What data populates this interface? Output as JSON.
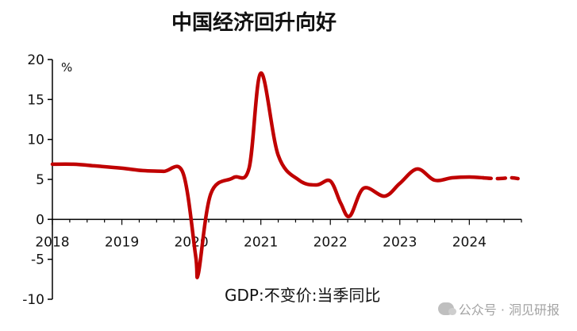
{
  "chart_data": {
    "type": "line",
    "title": "中国经济回升向好",
    "ylabel": "%",
    "note": "GDP:不变价:当季同比",
    "xlim": [
      2018,
      2024.75
    ],
    "ylim": [
      -10,
      20
    ],
    "xticks": [
      2018,
      2019,
      2020,
      2021,
      2022,
      2023,
      2024
    ],
    "xtick_labels": [
      "2018",
      "2019",
      "2020",
      "2021",
      "2022",
      "2023",
      "2024"
    ],
    "yticks": [
      -10,
      -5,
      0,
      5,
      10,
      15,
      20
    ],
    "ytick_labels": [
      "-10",
      "-5",
      "0",
      "5",
      "10",
      "15",
      "20"
    ],
    "grid": false,
    "line_color": "#c00000",
    "series": [
      {
        "values": [
          {
            "x": 2018.0,
            "y": 6.9
          },
          {
            "x": 2018.3,
            "y": 6.9
          },
          {
            "x": 2018.6,
            "y": 6.7
          },
          {
            "x": 2019.0,
            "y": 6.4
          },
          {
            "x": 2019.3,
            "y": 6.1
          },
          {
            "x": 2019.6,
            "y": 6.0
          },
          {
            "x": 2019.88,
            "y": 5.8
          },
          {
            "x": 2020.06,
            "y": -4.5
          },
          {
            "x": 2020.1,
            "y": -6.8
          },
          {
            "x": 2020.28,
            "y": 3.2
          },
          {
            "x": 2020.6,
            "y": 5.2
          },
          {
            "x": 2020.83,
            "y": 6.4
          },
          {
            "x": 2021.0,
            "y": 18.3
          },
          {
            "x": 2021.25,
            "y": 8.0
          },
          {
            "x": 2021.55,
            "y": 4.9
          },
          {
            "x": 2021.8,
            "y": 4.3
          },
          {
            "x": 2022.0,
            "y": 4.8
          },
          {
            "x": 2022.15,
            "y": 2.0
          },
          {
            "x": 2022.28,
            "y": 0.4
          },
          {
            "x": 2022.48,
            "y": 3.9
          },
          {
            "x": 2022.78,
            "y": 2.9
          },
          {
            "x": 2023.0,
            "y": 4.5
          },
          {
            "x": 2023.25,
            "y": 6.3
          },
          {
            "x": 2023.5,
            "y": 4.9
          },
          {
            "x": 2023.75,
            "y": 5.2
          },
          {
            "x": 2024.0,
            "y": 5.3
          },
          {
            "x": 2024.2,
            "y": 5.2
          }
        ]
      },
      {
        "style": "dashed",
        "values": [
          {
            "x": 2024.2,
            "y": 5.2
          },
          {
            "x": 2024.4,
            "y": 5.1
          },
          {
            "x": 2024.6,
            "y": 5.2
          },
          {
            "x": 2024.7,
            "y": 5.1
          }
        ]
      }
    ]
  },
  "watermark": {
    "text": "公众号 · 洞见研报",
    "icon": "wechat-icon"
  }
}
